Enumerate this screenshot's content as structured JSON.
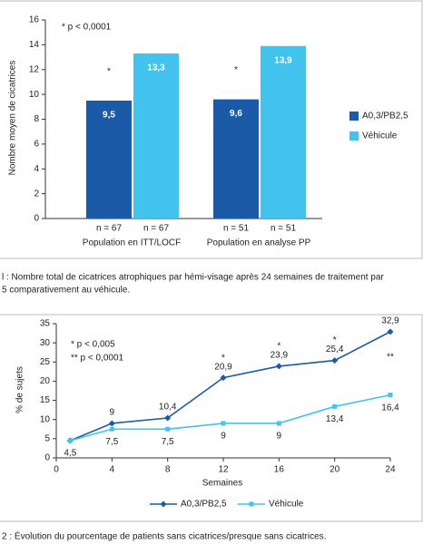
{
  "chart_data": [
    {
      "type": "bar",
      "y_label": "Nombre moyen de cicatrices",
      "annotation": "* p < 0,0001",
      "categories": [
        "Population en ITT/LOCF",
        "Population en analyse PP"
      ],
      "series": [
        {
          "name": "A0,3/PB2,5",
          "color": "#1a5aa6",
          "values": [
            9.5,
            9.6
          ],
          "value_labels": [
            "9,5",
            "9,6"
          ],
          "n_labels": [
            "n = 67",
            "n = 51"
          ],
          "markers": [
            "*",
            "*"
          ]
        },
        {
          "name": "Véhicule",
          "color": "#41c3ee",
          "values": [
            13.3,
            13.9
          ],
          "value_labels": [
            "13,3",
            "13,9"
          ],
          "n_labels": [
            "n = 67",
            "n = 51"
          ]
        }
      ],
      "ylim": [
        0,
        16
      ],
      "yticks": [
        0,
        2,
        4,
        6,
        8,
        10,
        12,
        14,
        16
      ],
      "caption": [
        "l : Nombre total de cicatrices atrophiques par hémi-visage après 24 semaines de traitement par",
        "5 comparativement au véhicule."
      ]
    },
    {
      "type": "line",
      "x_label": "Semaines",
      "y_label": "% de sujets",
      "annotations": [
        "* p < 0,005",
        "** p < 0,0001"
      ],
      "x": [
        1,
        4,
        8,
        12,
        16,
        20,
        24
      ],
      "series": [
        {
          "name": "A0,3/PB2,5",
          "color": "#1a5aa6",
          "values": [
            4.5,
            9,
            10.4,
            20.9,
            23.9,
            25.4,
            32.9
          ],
          "value_labels": [
            "4,5",
            "9",
            "10,4",
            "20,9",
            "23,9",
            "25,4",
            "32,9"
          ],
          "markers": [
            null,
            null,
            null,
            "*",
            "*",
            "*",
            "**"
          ]
        },
        {
          "name": "Véhicule",
          "color": "#41c3ee",
          "values": [
            4.5,
            7.5,
            7.5,
            9,
            9,
            13.4,
            16.4
          ],
          "value_labels": [
            null,
            "7,5",
            "7,5",
            "9",
            "9",
            "13,4",
            "16,4"
          ]
        }
      ],
      "xlim": [
        0,
        24
      ],
      "xticks": [
        0,
        4,
        8,
        12,
        16,
        20,
        24
      ],
      "ylim": [
        0,
        35
      ],
      "yticks": [
        0,
        5,
        10,
        15,
        20,
        25,
        30,
        35
      ],
      "caption": [
        "2 : Évolution du pourcentage de patients sans cicatrices/presque sans cicatrices."
      ]
    }
  ]
}
